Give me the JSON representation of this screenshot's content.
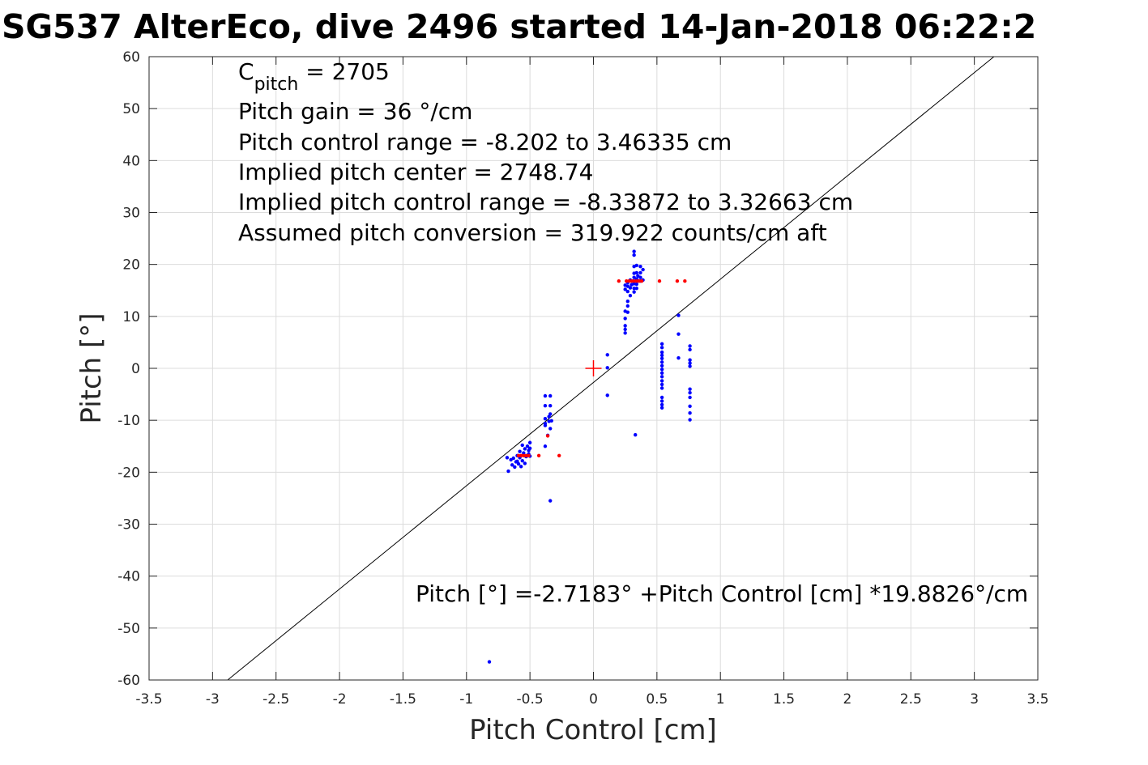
{
  "chart_data": {
    "type": "scatter",
    "title": "SG537 AlterEco, dive 2496 started 14-Jan-2018 06:22:2",
    "xlabel": "Pitch Control [cm]",
    "ylabel": "Pitch [°]",
    "xlim": [
      -3.5,
      3.5
    ],
    "ylim": [
      -60,
      60
    ],
    "xticks": [
      -3.5,
      -3,
      -2.5,
      -2,
      -1.5,
      -1,
      -0.5,
      0,
      0.5,
      1,
      1.5,
      2,
      2.5,
      3,
      3.5
    ],
    "yticks": [
      -60,
      -50,
      -40,
      -30,
      -20,
      -10,
      0,
      10,
      20,
      30,
      40,
      50,
      60
    ],
    "grid": true,
    "annotations": {
      "c_pitch_main": "C",
      "c_pitch_sub": "pitch",
      "c_pitch_rest": " = 2705",
      "lines": [
        "Pitch gain = 36 °/cm",
        "Pitch control range = -8.202 to 3.46335 cm",
        "Implied pitch center = 2748.74",
        "Implied pitch control range = -8.33872 to 3.32663 cm",
        "Assumed pitch conversion = 319.922 counts/cm aft"
      ],
      "fit_equation": "Pitch [°] =-2.7183° +Pitch Control [cm] *19.8826°/cm"
    },
    "fit_line": {
      "intercept": -2.7183,
      "slope": 19.8826
    },
    "center_marker": {
      "x": 0,
      "y": 0,
      "color": "#ff0000"
    },
    "series": [
      {
        "color": "#0000ff",
        "points": [
          [
            -0.68,
            -17.2
          ],
          [
            -0.67,
            -19.8
          ],
          [
            -0.65,
            -17.6
          ],
          [
            -0.64,
            -18.6
          ],
          [
            -0.63,
            -17.3
          ],
          [
            -0.62,
            -19.0
          ],
          [
            -0.61,
            -18.0
          ],
          [
            -0.6,
            -16.8
          ],
          [
            -0.6,
            -17.9
          ],
          [
            -0.59,
            -18.4
          ],
          [
            -0.58,
            -16.0
          ],
          [
            -0.58,
            -17.2
          ],
          [
            -0.57,
            -18.9
          ],
          [
            -0.56,
            -14.8
          ],
          [
            -0.56,
            -17.8
          ],
          [
            -0.55,
            -16.3
          ],
          [
            -0.54,
            -15.5
          ],
          [
            -0.54,
            -18.3
          ],
          [
            -0.53,
            -17.0
          ],
          [
            -0.52,
            -15.0
          ],
          [
            -0.51,
            -15.8
          ],
          [
            -0.51,
            -16.5
          ],
          [
            -0.5,
            -14.3
          ],
          [
            -0.5,
            -15.4
          ],
          [
            -0.5,
            -16.9
          ],
          [
            -0.38,
            -5.3
          ],
          [
            -0.38,
            -7.2
          ],
          [
            -0.38,
            -9.7
          ],
          [
            -0.38,
            -10.6
          ],
          [
            -0.38,
            -11.0
          ],
          [
            -0.38,
            -15.0
          ],
          [
            -0.36,
            -12.9
          ],
          [
            -0.35,
            -9.3
          ],
          [
            -0.35,
            -10.2
          ],
          [
            -0.34,
            -5.3
          ],
          [
            -0.34,
            -7.2
          ],
          [
            -0.34,
            -8.8
          ],
          [
            -0.34,
            -11.6
          ],
          [
            -0.33,
            -10.1
          ],
          [
            -0.34,
            -25.5
          ],
          [
            0.11,
            2.6
          ],
          [
            0.11,
            0.1
          ],
          [
            0.11,
            -5.2
          ],
          [
            0.25,
            16.0
          ],
          [
            0.25,
            15.2
          ],
          [
            0.25,
            11.0
          ],
          [
            0.25,
            9.6
          ],
          [
            0.25,
            8.2
          ],
          [
            0.25,
            7.5
          ],
          [
            0.25,
            6.8
          ],
          [
            0.27,
            15.8
          ],
          [
            0.27,
            14.8
          ],
          [
            0.27,
            12.9
          ],
          [
            0.27,
            12.0
          ],
          [
            0.27,
            10.8
          ],
          [
            0.27,
            16.5
          ],
          [
            0.29,
            17.0
          ],
          [
            0.29,
            14.0
          ],
          [
            0.29,
            15.5
          ],
          [
            0.3,
            16.1
          ],
          [
            0.31,
            16.8
          ],
          [
            0.32,
            22.5
          ],
          [
            0.32,
            21.8
          ],
          [
            0.32,
            19.6
          ],
          [
            0.32,
            18.3
          ],
          [
            0.32,
            17.5
          ],
          [
            0.32,
            16.3
          ],
          [
            0.32,
            15.4
          ],
          [
            0.32,
            14.7
          ],
          [
            0.34,
            19.8
          ],
          [
            0.34,
            18.4
          ],
          [
            0.34,
            17.2
          ],
          [
            0.34,
            16.2
          ],
          [
            0.34,
            15.4
          ],
          [
            0.35,
            17.8
          ],
          [
            0.35,
            16.8
          ],
          [
            0.37,
            19.6
          ],
          [
            0.37,
            18.4
          ],
          [
            0.37,
            17.5
          ],
          [
            0.37,
            16.8
          ],
          [
            0.39,
            19.0
          ],
          [
            0.39,
            17.0
          ],
          [
            0.33,
            -12.8
          ],
          [
            0.54,
            4.7
          ],
          [
            0.54,
            4.0
          ],
          [
            0.54,
            3.1
          ],
          [
            0.54,
            2.5
          ],
          [
            0.54,
            1.9
          ],
          [
            0.54,
            1.2
          ],
          [
            0.54,
            0.5
          ],
          [
            0.54,
            -0.2
          ],
          [
            0.54,
            -0.9
          ],
          [
            0.54,
            -1.6
          ],
          [
            0.54,
            -2.4
          ],
          [
            0.54,
            -3.1
          ],
          [
            0.54,
            -3.8
          ],
          [
            0.54,
            -5.6
          ],
          [
            0.54,
            -6.3
          ],
          [
            0.54,
            -7.0
          ],
          [
            0.54,
            -7.6
          ],
          [
            0.67,
            10.2
          ],
          [
            0.67,
            6.6
          ],
          [
            0.67,
            2.0
          ],
          [
            0.76,
            4.3
          ],
          [
            0.76,
            3.6
          ],
          [
            0.76,
            1.6
          ],
          [
            0.76,
            1.0
          ],
          [
            0.76,
            0.4
          ],
          [
            0.76,
            -4.0
          ],
          [
            0.76,
            -4.7
          ],
          [
            0.76,
            -5.6
          ],
          [
            0.76,
            -7.3
          ],
          [
            0.76,
            -8.6
          ],
          [
            0.76,
            -9.9
          ],
          [
            -0.82,
            -56.5
          ]
        ]
      },
      {
        "color": "#ff0000",
        "points": [
          [
            -0.59,
            -16.8
          ],
          [
            -0.57,
            -16.8
          ],
          [
            -0.55,
            -16.8
          ],
          [
            -0.53,
            -16.8
          ],
          [
            -0.51,
            -16.8
          ],
          [
            -0.43,
            -16.8
          ],
          [
            -0.27,
            -16.8
          ],
          [
            -0.36,
            -13.0
          ],
          [
            0.2,
            16.8
          ],
          [
            0.26,
            16.8
          ],
          [
            0.28,
            16.8
          ],
          [
            0.3,
            16.8
          ],
          [
            0.32,
            16.8
          ],
          [
            0.34,
            16.8
          ],
          [
            0.36,
            16.8
          ],
          [
            0.38,
            16.8
          ],
          [
            0.52,
            16.8
          ],
          [
            0.66,
            16.8
          ],
          [
            0.72,
            16.8
          ]
        ]
      }
    ]
  }
}
